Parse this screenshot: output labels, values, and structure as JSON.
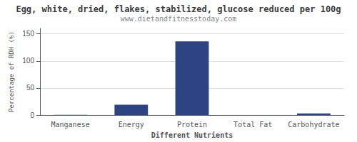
{
  "chart_data": {
    "type": "bar",
    "title": "Egg, white, dried, flakes, stabilized, glucose reduced per 100g",
    "subtitle": "www.dietandfitnesstoday.com",
    "xlabel": "Different Nutrients",
    "ylabel": "Percentage of RDH (%)",
    "categories": [
      "Manganese",
      "Energy",
      "Protein",
      "Total Fat",
      "Carbohydrate"
    ],
    "values": [
      0.5,
      19,
      136,
      0.0,
      3
    ],
    "color": "#2e4482",
    "ylim": [
      0,
      160
    ],
    "yticks": [
      0,
      50,
      100,
      150
    ],
    "grid": true
  }
}
